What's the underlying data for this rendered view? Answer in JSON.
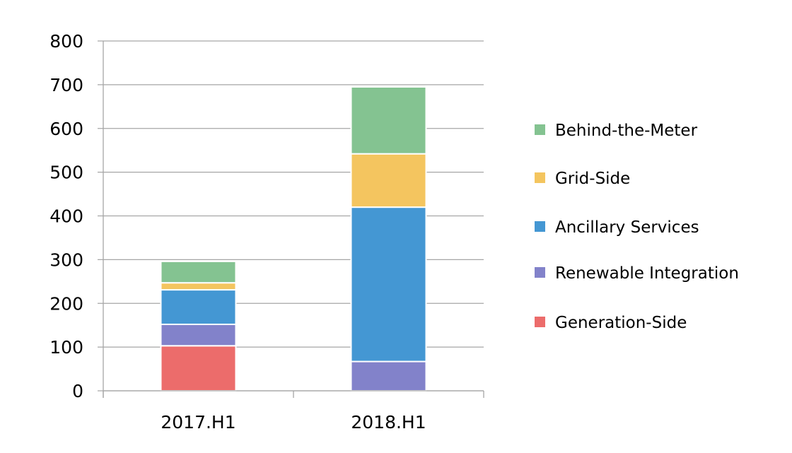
{
  "chart_data": {
    "type": "bar",
    "stacked": true,
    "categories": [
      "2017.H1",
      "2018.H1"
    ],
    "series": [
      {
        "name": "Generation-Side",
        "color": "#ec6c6b",
        "values": [
          103,
          0
        ]
      },
      {
        "name": "Renewable Integration",
        "color": "#8282ca",
        "values": [
          49,
          67
        ]
      },
      {
        "name": "Ancillary Services",
        "color": "#4497d3",
        "values": [
          79,
          353
        ]
      },
      {
        "name": "Grid-Side",
        "color": "#f4c55f",
        "values": [
          16,
          122
        ]
      },
      {
        "name": "Behind-the-Meter",
        "color": "#84c391",
        "values": [
          49,
          153
        ]
      }
    ],
    "ylim": [
      0,
      800
    ],
    "yticks": [
      "0",
      "100",
      "200",
      "300",
      "400",
      "500",
      "600",
      "700",
      "800"
    ],
    "grid": true,
    "legend_position": "right",
    "legend_order": [
      "Behind-the-Meter",
      "Grid-Side",
      "Ancillary Services",
      "Renewable Integration",
      "Generation-Side"
    ]
  }
}
